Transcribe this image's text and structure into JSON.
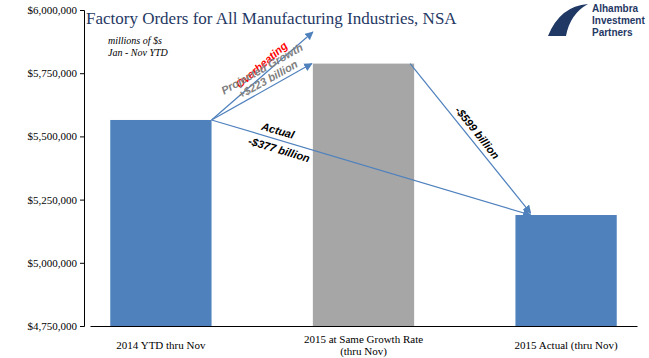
{
  "chart_data": {
    "type": "bar",
    "title": "Factory Orders for All Manufacturing Industries, NSA",
    "subtitle": [
      "millions of $s",
      "Jan - Nov YTD"
    ],
    "logo": "Alhambra Investment Partners",
    "categories": [
      "2014 YTD thru Nov",
      "2015 at Same Growth Rate (thru Nov)",
      "2015 Actual (thru Nov)"
    ],
    "values": [
      5565000,
      5788000,
      5189000
    ],
    "colors": [
      "#4F81BD",
      "#A6A6A6",
      "#4F81BD"
    ],
    "ylim": [
      4750000,
      6000000
    ],
    "yticks": [
      {
        "value": 4750000,
        "label": "$4,750,000"
      },
      {
        "value": 5000000,
        "label": "$5,000,000"
      },
      {
        "value": 5250000,
        "label": "$5,250,000"
      },
      {
        "value": 5500000,
        "label": "$5,500,000"
      },
      {
        "value": 5750000,
        "label": "$5,750,000"
      },
      {
        "value": 6000000,
        "label": "$6,000,000"
      }
    ],
    "grid": false,
    "annotations": {
      "overheating": "Overheating",
      "projected": [
        "Projected Growth",
        "+$223 billion"
      ],
      "actual": [
        "Actual",
        "-$377 billion"
      ],
      "gap": "-$599 billion"
    }
  }
}
